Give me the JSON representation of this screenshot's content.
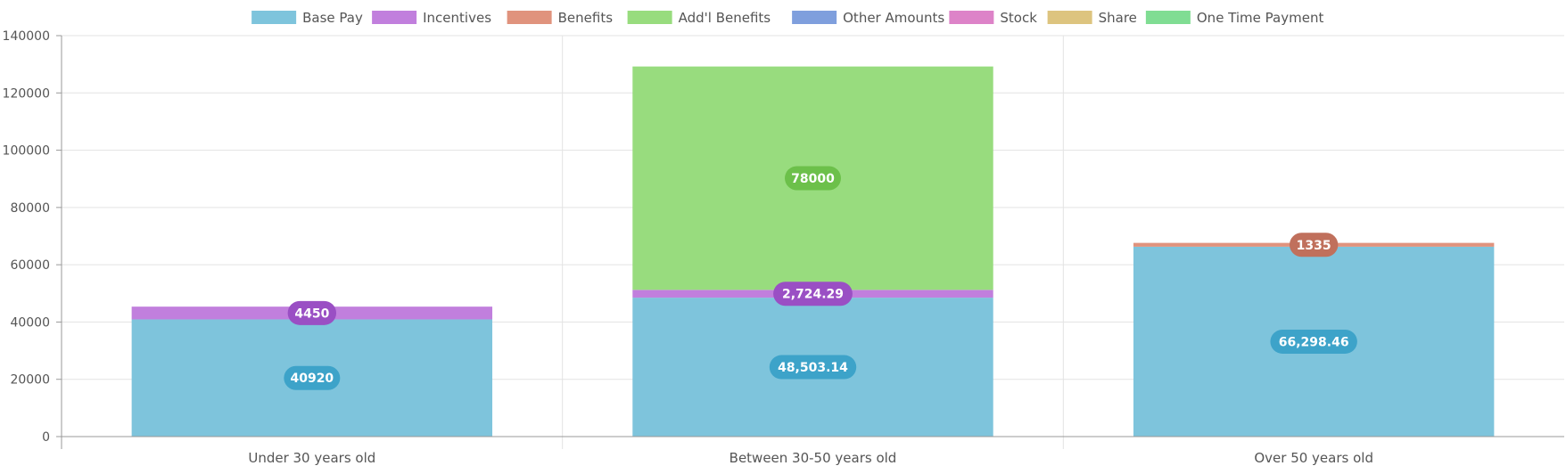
{
  "chart_data": {
    "type": "bar",
    "stacked": true,
    "categories": [
      "Under 30 years old",
      "Between 30-50 years old",
      "Over 50 years old"
    ],
    "ylim": [
      0,
      140000
    ],
    "yticks": [
      0,
      20000,
      40000,
      60000,
      80000,
      100000,
      120000,
      140000
    ],
    "ytick_labels": [
      "0",
      "20000",
      "40000",
      "60000",
      "80000",
      "100000",
      "120000",
      "140000"
    ],
    "grid": true,
    "legend_position": "top",
    "series": [
      {
        "name": "Base Pay",
        "color": "#7ec4dc",
        "label_color": "#3da3c9",
        "values": [
          40920,
          48503.14,
          66298.46
        ],
        "labels": [
          "40920",
          "48,503.14",
          "66,298.46"
        ]
      },
      {
        "name": "Incentives",
        "color": "#c17fdd",
        "label_color": "#9a4fc4",
        "values": [
          4450,
          2724.29,
          0
        ],
        "labels": [
          "4450",
          "2,724.29",
          ""
        ]
      },
      {
        "name": "Benefits",
        "color": "#e0937d",
        "label_color": "#c0705c",
        "values": [
          0,
          0,
          1335
        ],
        "labels": [
          "",
          "",
          "1335"
        ]
      },
      {
        "name": "Add'l Benefits",
        "color": "#98dc7e",
        "label_color": "#6cc04a",
        "values": [
          0,
          78000,
          0
        ],
        "labels": [
          "",
          "78000",
          ""
        ]
      },
      {
        "name": "Other Amounts",
        "color": "#7f9fdd",
        "label_color": "#5b7fc8",
        "values": [
          0,
          0,
          0
        ],
        "labels": [
          "",
          "",
          ""
        ]
      },
      {
        "name": "Stock",
        "color": "#dd83c8",
        "label_color": "#c25aa8",
        "values": [
          0,
          0,
          0
        ],
        "labels": [
          "",
          "",
          ""
        ]
      },
      {
        "name": "Share",
        "color": "#ddc47f",
        "label_color": "#c4a650",
        "values": [
          0,
          0,
          0
        ],
        "labels": [
          "",
          "",
          ""
        ]
      },
      {
        "name": "One Time Payment",
        "color": "#80dd93",
        "label_color": "#4fc468",
        "values": [
          0,
          0,
          0
        ],
        "labels": [
          "",
          "",
          ""
        ]
      }
    ]
  }
}
